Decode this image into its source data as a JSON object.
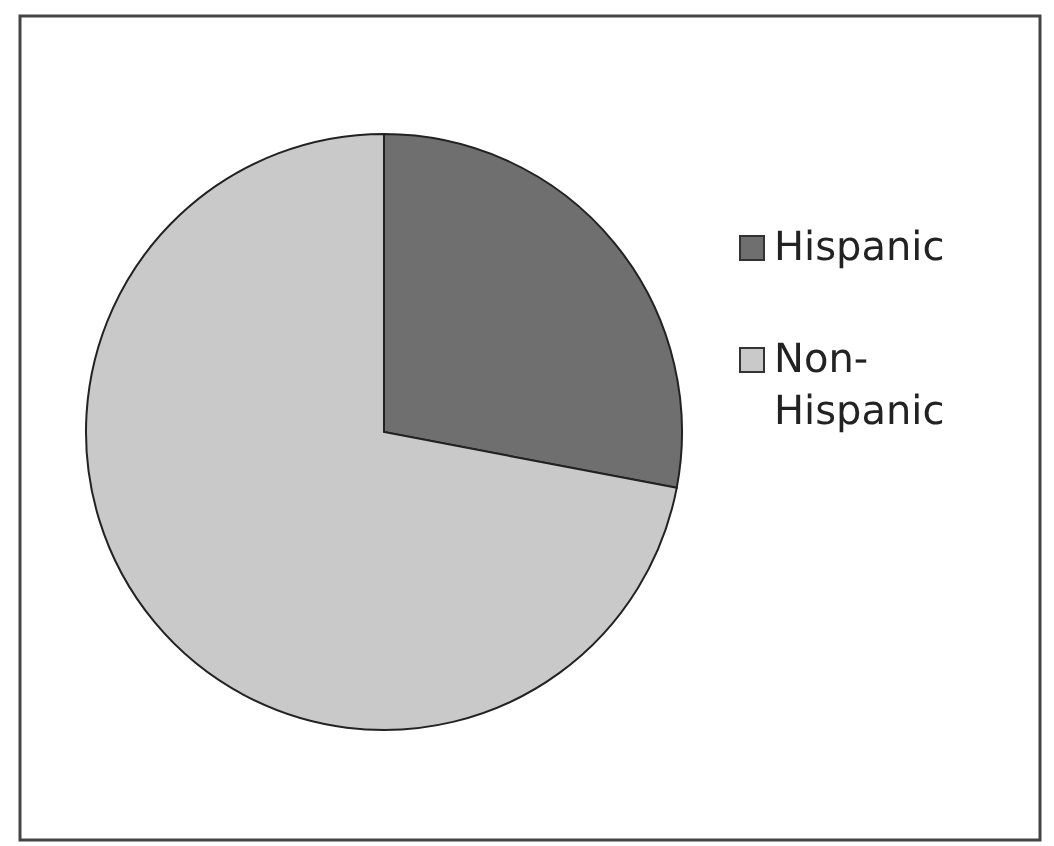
{
  "chart_data": {
    "type": "pie",
    "categories": [
      "Hispanic",
      "Non-Hispanic"
    ],
    "values": [
      28,
      72
    ],
    "colors": [
      "#6f6f6f",
      "#c9c9c9"
    ],
    "legend": "right"
  }
}
